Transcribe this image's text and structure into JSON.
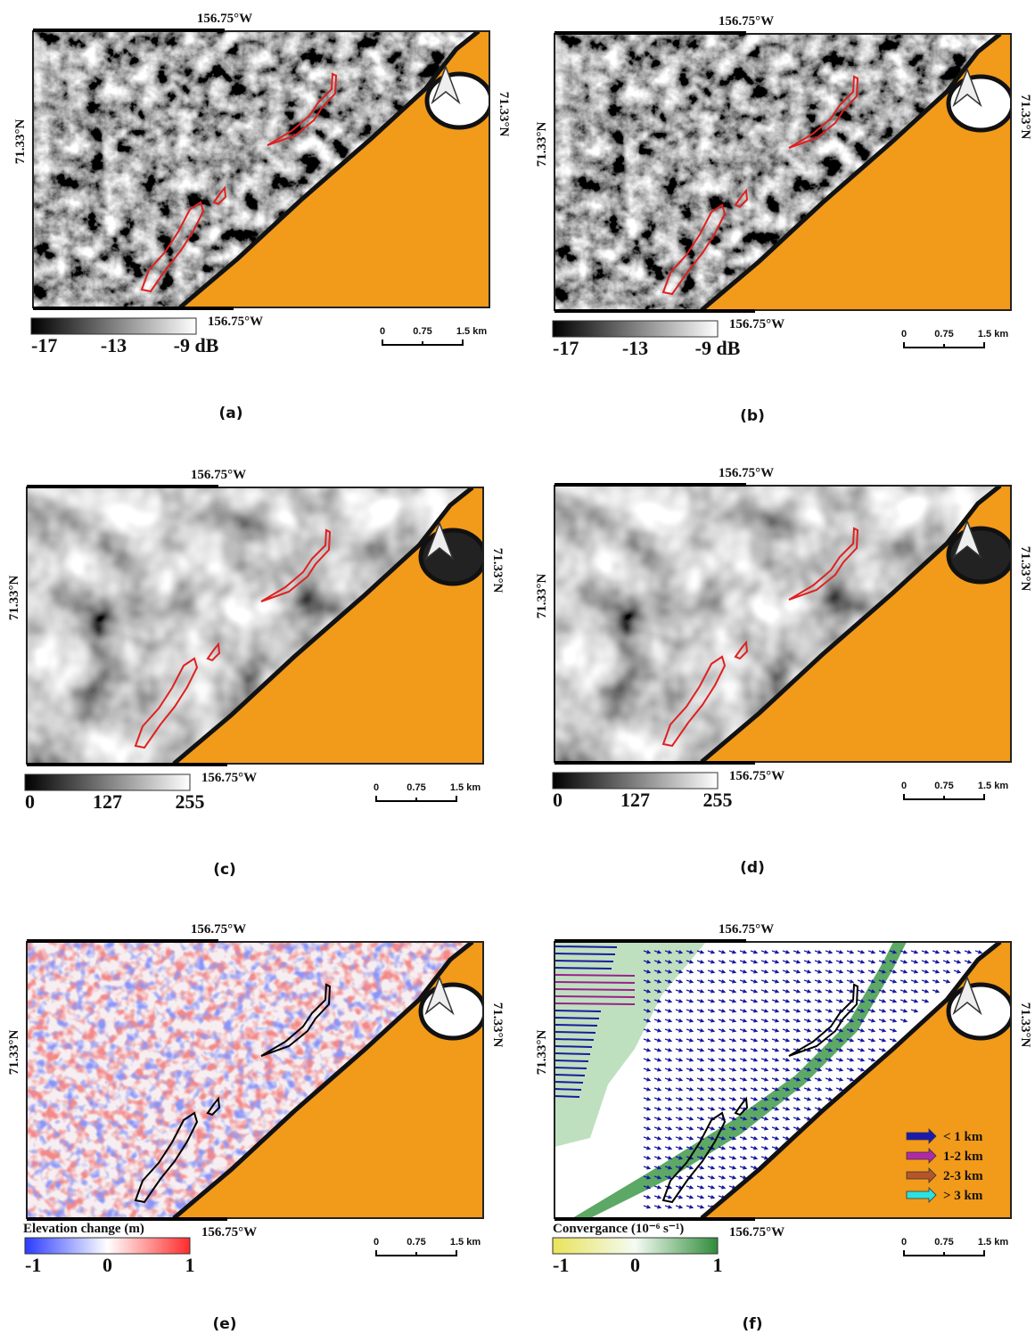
{
  "panels": [
    {
      "caption": "(a)",
      "lon_top": "156.75°W",
      "lon_bottom": "156.75°W",
      "lat_left": "71.33°N",
      "lat_right": "71.33°N",
      "colorbar_labels": [
        "-17",
        "-13",
        "-9 dB"
      ],
      "scale_labels": [
        "0",
        "0.75",
        "1.5 km"
      ]
    },
    {
      "caption": "(b)",
      "lon_top": "156.75°W",
      "lon_bottom": "156.75°W",
      "lat_left": "71.33°N",
      "lat_right": "71.33°N",
      "colorbar_labels": [
        "-17",
        "-13",
        "-9 dB"
      ],
      "scale_labels": [
        "0",
        "0.75",
        "1.5 km"
      ]
    },
    {
      "caption": "(c)",
      "lon_top": "156.75°W",
      "lon_bottom": "156.75°W",
      "lat_left": "71.33°N",
      "lat_right": "71.33°N",
      "colorbar_labels": [
        "0",
        "127",
        "255"
      ],
      "scale_labels": [
        "0",
        "0.75",
        "1.5 km"
      ]
    },
    {
      "caption": "(d)",
      "lon_top": "156.75°W",
      "lon_bottom": "156.75°W",
      "lat_left": "71.33°N",
      "lat_right": "71.33°N",
      "colorbar_labels": [
        "0",
        "127",
        "255"
      ],
      "scale_labels": [
        "0",
        "0.75",
        "1.5 km"
      ]
    },
    {
      "caption": "(e)",
      "lon_top": "156.75°W",
      "lon_bottom": "156.75°W",
      "lat_left": "71.33°N",
      "lat_right": "71.33°N",
      "colorbar_title": "Elevation change (m)",
      "colorbar_labels": [
        "-1",
        "0",
        "1"
      ],
      "scale_labels": [
        "0",
        "0.75",
        "1.5 km"
      ]
    },
    {
      "caption": "(f)",
      "lon_top": "156.75°W",
      "lon_bottom": "156.75°W",
      "lat_left": "71.33°N",
      "lat_right": "71.33°N",
      "colorbar_title": "Convergance (10⁻⁶ s⁻¹)",
      "colorbar_labels": [
        "-1",
        "0",
        "1"
      ],
      "scale_labels": [
        "0",
        "0.75",
        "1.5 km"
      ],
      "legend": [
        "< 1 km",
        "1-2  km",
        "2-3  km",
        "> 3 km"
      ]
    }
  ]
}
